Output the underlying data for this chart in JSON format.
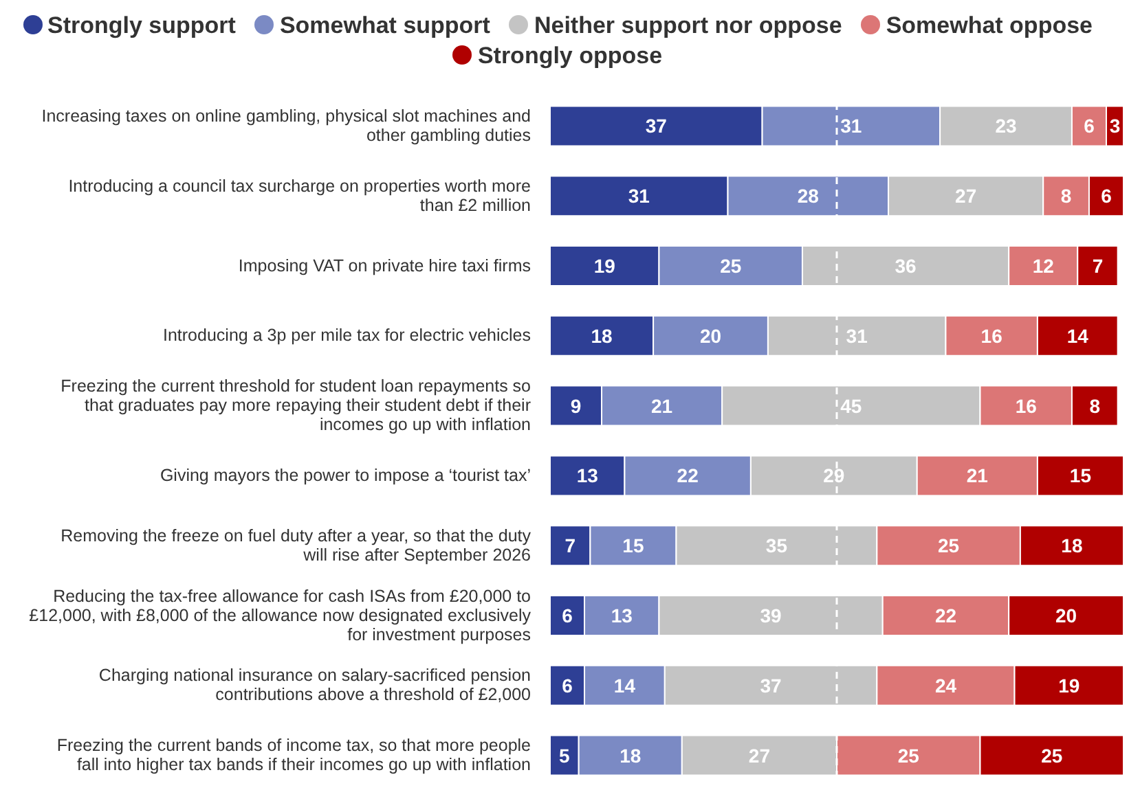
{
  "chart_data": {
    "type": "bar",
    "orientation": "horizontal",
    "stacked": true,
    "data_labels": true,
    "legend": "top",
    "tick_labels": "y",
    "xlim": [
      0,
      100
    ],
    "categories": [
      "Increasing taxes on online gambling, physical slot machines and other gambling duties",
      "Introducing a council tax surcharge on properties worth more than £2 million",
      "Imposing VAT on private hire taxi firms",
      "Introducing a 3p per mile tax for electric vehicles",
      "Freezing the current threshold for student loan repayments so that graduates pay more repaying their student debt if their incomes go up with inflation",
      "Giving mayors the power to impose a ‘tourist tax’",
      "Removing the freeze on fuel duty after a year, so that the duty will rise after September 2026",
      "Reducing the tax-free allowance for cash ISAs from £20,000 to £12,000, with £8,000 of the allowance now designated exclusively for investment purposes",
      "Charging national insurance on salary-sacrificed pension contributions above a threshold of £2,000",
      "Freezing the current bands of income tax, so that more people fall into higher tax bands if their incomes go up with inflation"
    ],
    "series": [
      {
        "name": "Strongly support",
        "color": "#2e3f95",
        "values": [
          37,
          31,
          19,
          18,
          9,
          13,
          7,
          6,
          6,
          5
        ]
      },
      {
        "name": "Somewhat support",
        "color": "#7b8ac4",
        "values": [
          31,
          28,
          25,
          20,
          21,
          22,
          15,
          13,
          14,
          18
        ]
      },
      {
        "name": "Neither support nor oppose",
        "color": "#c4c4c4",
        "values": [
          23,
          27,
          36,
          31,
          45,
          29,
          35,
          39,
          37,
          27
        ]
      },
      {
        "name": "Somewhat oppose",
        "color": "#dc7676",
        "values": [
          6,
          8,
          12,
          16,
          16,
          21,
          25,
          22,
          24,
          25
        ]
      },
      {
        "name": "Strongly oppose",
        "color": "#b00000",
        "values": [
          3,
          6,
          7,
          14,
          8,
          15,
          18,
          20,
          19,
          25
        ]
      }
    ],
    "ref_lines": [
      {
        "axis": "x",
        "value": 50,
        "color": "#ffffff",
        "line_style": "dashed"
      }
    ]
  }
}
